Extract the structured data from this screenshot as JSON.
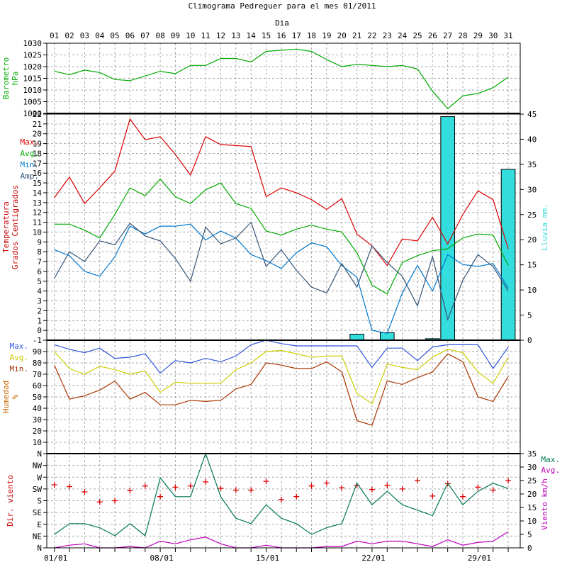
{
  "chart_data": {
    "type": "line",
    "title": "Climograma Pedreguer para el mes 01/2011",
    "top_xlabel": "Dia",
    "days": [
      "01",
      "02",
      "03",
      "04",
      "05",
      "06",
      "07",
      "08",
      "09",
      "10",
      "11",
      "12",
      "13",
      "14",
      "15",
      "16",
      "17",
      "18",
      "19",
      "20",
      "21",
      "22",
      "23",
      "24",
      "25",
      "26",
      "27",
      "28",
      "29",
      "30",
      "31"
    ],
    "bottom_dates": [
      "01/01",
      "08/01",
      "15/01",
      "22/01",
      "29/01"
    ],
    "colors": {
      "temp_label": "#cc0000",
      "max_temp": "#dd0000",
      "avg": "#00aa00",
      "min": "#0077cc",
      "amp": "#335577",
      "rain": "#33dddd",
      "hum_max": "#3355dd",
      "hum_avg": "#cccc00",
      "hum_min": "#aa3300",
      "hum_label": "#cc6600",
      "wind_dir": "#dd0000",
      "wind_max": "#007755",
      "wind_avg": "#bb00bb",
      "baro": "#00aa00"
    },
    "panels": [
      {
        "id": "barometer",
        "ylabel": [
          "Barometro",
          "hPa"
        ],
        "ylim": [
          1000,
          1030
        ],
        "yticks": [
          "1000",
          "1005",
          "1010",
          "1015",
          "1020",
          "1025",
          "1030"
        ],
        "series": [
          {
            "key": "baro",
            "values": [
              1018,
              1016.5,
              1018.5,
              1017.5,
              1014.5,
              1014,
              1016,
              1018,
              1017,
              1020.5,
              1020.5,
              1023.5,
              1023.5,
              1022,
              1026.5,
              1027,
              1027.5,
              1026.5,
              1023,
              1020,
              1021,
              1020.5,
              1020,
              1020.5,
              1019,
              1009.5,
              1002,
              1007.5,
              1008.5,
              1011,
              1015.5
            ]
          }
        ]
      },
      {
        "id": "temperature",
        "ylabel": [
          "Temperatura",
          "Grados Centigrados"
        ],
        "ylim": [
          -1,
          22
        ],
        "yticks": [
          "-1",
          "0",
          "1",
          "2",
          "3",
          "4",
          "5",
          "6",
          "7",
          "8",
          "9",
          "10",
          "11",
          "12",
          "13",
          "14",
          "15",
          "16",
          "17",
          "18",
          "19",
          "20",
          "21",
          "22"
        ],
        "legend": [
          "Max.",
          "Avg.",
          "Min.",
          "Amp."
        ],
        "y2label": "Lluvia mm.",
        "y2lim": [
          0,
          45
        ],
        "y2ticks": [
          "0",
          "5",
          "10",
          "15",
          "20",
          "25",
          "30",
          "35",
          "40",
          "45"
        ],
        "series": [
          {
            "name": "Max.",
            "key": "max_temp",
            "values": [
              13.5,
              15.6,
              12.9,
              14.5,
              16.2,
              21.5,
              19.4,
              19.7,
              17.9,
              15.8,
              19.7,
              18.9,
              18.8,
              18.7,
              13.6,
              14.5,
              14,
              13.3,
              12.3,
              13.4,
              9.8,
              8.6,
              6.6,
              9.3,
              9.1,
              11.5,
              8.8,
              11.8,
              14.2,
              13.3,
              8.3
            ]
          },
          {
            "name": "Avg.",
            "key": "avg",
            "values": [
              10.8,
              10.8,
              10.2,
              9.4,
              11.8,
              14.5,
              13.7,
              15.4,
              13.6,
              12.9,
              14.3,
              15,
              12.9,
              12.4,
              10.1,
              9.7,
              10.3,
              10.7,
              10.3,
              10,
              7.9,
              4.6,
              3.7,
              6.9,
              7.6,
              8.1,
              8.3,
              9.4,
              9.8,
              9.7,
              6.6
            ]
          },
          {
            "name": "Min.",
            "key": "min",
            "values": [
              8.2,
              7.6,
              6,
              5.5,
              7.5,
              10.6,
              9.8,
              10.6,
              10.6,
              10.8,
              9.2,
              10.1,
              9.4,
              7.7,
              7.1,
              6.3,
              7.9,
              8.9,
              8.5,
              6.6,
              5.4,
              0,
              -0.3,
              3.8,
              6.6,
              4,
              7.7,
              6.7,
              6.5,
              6.8,
              4.3
            ]
          },
          {
            "name": "Amp.",
            "key": "amp",
            "values": [
              5.3,
              8,
              7,
              9.1,
              8.7,
              10.9,
              9.6,
              9.1,
              7.3,
              5,
              10.5,
              8.8,
              9.4,
              11,
              6.5,
              8.2,
              6.1,
              4.4,
              3.8,
              6.8,
              4.4,
              8.6,
              6.9,
              5.5,
              2.5,
              7.5,
              1.1,
              5.1,
              7.7,
              6.5,
              4
            ]
          }
        ],
        "rain": [
          0,
          0,
          0,
          0,
          0,
          0,
          0,
          0,
          0,
          0,
          0,
          0,
          0,
          0,
          0,
          0,
          0,
          0,
          0,
          0,
          1.2,
          0,
          1.5,
          0,
          0,
          0.3,
          44.5,
          0,
          0,
          0,
          34
        ]
      },
      {
        "id": "humidity",
        "ylabel": [
          "Humedad",
          "%"
        ],
        "ylim": [
          0,
          100
        ],
        "yticks": [
          "10",
          "20",
          "30",
          "40",
          "50",
          "60",
          "70",
          "80",
          "90"
        ],
        "legend": [
          "Max.",
          "Avg.",
          "Min."
        ],
        "series": [
          {
            "name": "Max.",
            "key": "hum_max",
            "values": [
              96,
              92,
              89,
              93,
              84,
              85,
              88,
              71,
              82,
              80,
              84,
              81,
              86,
              96,
              100,
              97,
              95,
              95,
              95,
              95,
              95,
              76,
              93,
              93,
              82,
              94,
              96,
              96,
              96,
              75,
              94
            ]
          },
          {
            "name": "Avg.",
            "key": "hum_avg",
            "values": [
              90,
              75,
              70,
              77,
              74,
              70,
              73,
              54,
              63,
              62,
              62,
              62,
              74,
              80,
              90,
              91,
              88,
              85,
              86,
              86,
              53,
              44,
              79,
              76,
              74,
              85,
              92,
              89,
              72,
              62,
              85
            ]
          },
          {
            "name": "Min.",
            "key": "hum_min",
            "values": [
              78,
              48,
              51,
              56,
              64,
              48,
              54,
              43,
              43,
              47,
              46,
              47,
              57,
              61,
              80,
              78,
              75,
              75,
              81,
              72,
              29,
              25,
              64,
              61,
              67,
              72,
              88,
              81,
              50,
              46,
              68
            ]
          }
        ]
      },
      {
        "id": "wind",
        "ylabel": [
          "Dir. viento"
        ],
        "ylim": [
          0,
          16
        ],
        "yticks": [
          "N",
          "NE",
          "E",
          "SE",
          "S",
          "SW",
          "W",
          "NW",
          "N"
        ],
        "legend": [
          "Max.",
          "Avg."
        ],
        "y2label": "Viento km/h",
        "y2lim": [
          0,
          35
        ],
        "y2ticks": [
          "0",
          "5",
          "10",
          "15",
          "20",
          "25",
          "30",
          "35"
        ],
        "direction": [
          10.7,
          10.4,
          9.5,
          7.8,
          8.0,
          9.7,
          10.5,
          8.7,
          10.3,
          10.5,
          11.2,
          10.1,
          9.8,
          9.8,
          11.3,
          8.2,
          8.7,
          10.5,
          11,
          10.2,
          10.6,
          9.9,
          10.6,
          10.0,
          11.4,
          8.8,
          10.9,
          8.7,
          10.3,
          9.8,
          11.4
        ],
        "series": [
          {
            "name": "Max.",
            "key": "wind_max",
            "values": [
              5,
              9,
              9,
              7.5,
              4.5,
              9,
              4.5,
              26,
              19,
              19,
              35,
              19,
              11,
              9,
              16,
              11,
              9,
              5,
              7.5,
              9,
              24,
              16,
              21,
              16,
              14,
              12,
              24,
              16,
              21,
              24,
              22
            ]
          },
          {
            "name": "Avg.",
            "key": "wind_avg",
            "values": [
              0,
              1,
              1.5,
              0,
              0,
              0.5,
              0,
              2.5,
              1.5,
              3,
              4,
              1.5,
              0,
              0,
              1,
              0,
              0,
              0,
              0.5,
              0.5,
              2.5,
              1.5,
              2.5,
              2.5,
              1.5,
              0.5,
              3,
              1,
              2,
              2.5,
              6
            ]
          }
        ]
      }
    ]
  }
}
